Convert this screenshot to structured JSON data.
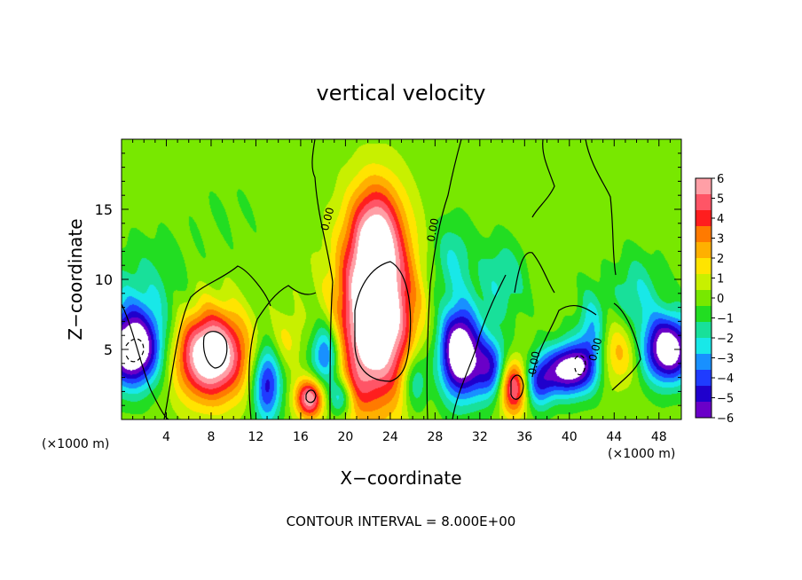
{
  "chart_data": {
    "type": "heatmap",
    "title": "vertical velocity",
    "xlabel": "X−coordinate",
    "ylabel": "Z−coordinate",
    "x_unit_left": "(×1000 m)",
    "x_unit_right": "(×1000 m)",
    "footer": "CONTOUR INTERVAL = 8.000E+00",
    "xlim": [
      0,
      50
    ],
    "ylim": [
      0,
      20
    ],
    "x_ticks": [
      "4",
      "8",
      "12",
      "16",
      "20",
      "24",
      "28",
      "32",
      "36",
      "40",
      "44",
      "48"
    ],
    "y_ticks": [
      "5",
      "10",
      "15"
    ],
    "colorbar": {
      "range": [
        -6,
        6
      ],
      "labels": [
        "6",
        "5",
        "4",
        "3",
        "2",
        "1",
        "0",
        "−1",
        "−2",
        "−3",
        "−4",
        "−5",
        "−6"
      ],
      "colors": [
        "#ff9fa6",
        "#ff5566",
        "#ff1e1e",
        "#ff7a00",
        "#ffb000",
        "#ffe400",
        "#c8f000",
        "#78e800",
        "#22dd22",
        "#18e09a",
        "#18e8e8",
        "#1890ff",
        "#1f3cff",
        "#1f00cc",
        "#6a00c8"
      ]
    },
    "contour_labels": [
      "0.00",
      "0.00",
      "0.00",
      "0.00"
    ],
    "features": [
      {
        "kind": "updraft",
        "x": 8.0,
        "z": 4.6,
        "sx": 2.2,
        "sz": 2.2,
        "w": 8.0
      },
      {
        "kind": "updraft",
        "x": 22.7,
        "z": 7.5,
        "sx": 2.3,
        "sz": 4.4,
        "w": 9.0
      },
      {
        "kind": "updraft",
        "x": 22.7,
        "z": 13.5,
        "sx": 1.6,
        "sz": 2.6,
        "w": 4.0
      },
      {
        "kind": "updraft",
        "x": 16.8,
        "z": 1.5,
        "sx": 0.9,
        "sz": 1.0,
        "w": 6.0
      },
      {
        "kind": "updraft",
        "x": 35.0,
        "z": 2.3,
        "sx": 0.9,
        "sz": 1.4,
        "w": 6.0
      },
      {
        "kind": "updraft",
        "x": 20.5,
        "z": 1.8,
        "sx": 0.9,
        "sz": 1.2,
        "w": 3.0
      },
      {
        "kind": "updraft",
        "x": 44.4,
        "z": 4.8,
        "sx": 1.3,
        "sz": 1.6,
        "w": 2.5
      },
      {
        "kind": "updraft",
        "x": 14.6,
        "z": 5.6,
        "sx": 1.0,
        "sz": 1.4,
        "w": 1.5
      },
      {
        "kind": "downdraft",
        "x": 1.0,
        "z": 5.0,
        "sx": 1.8,
        "sz": 1.9,
        "w": -8.0
      },
      {
        "kind": "downdraft",
        "x": 30.2,
        "z": 4.8,
        "sx": 1.3,
        "sz": 2.3,
        "w": -8.0
      },
      {
        "kind": "downdraft",
        "x": 40.0,
        "z": 3.6,
        "sx": 1.5,
        "sz": 1.3,
        "w": -7.0
      },
      {
        "kind": "downdraft",
        "x": 48.8,
        "z": 5.0,
        "sx": 1.6,
        "sz": 1.7,
        "w": -7.5
      },
      {
        "kind": "downdraft",
        "x": 13.0,
        "z": 2.6,
        "sx": 0.9,
        "sz": 2.0,
        "w": -5.0
      },
      {
        "kind": "downdraft",
        "x": 18.2,
        "z": 4.6,
        "sx": 0.9,
        "sz": 1.6,
        "w": -4.5
      },
      {
        "kind": "downdraft",
        "x": 19.8,
        "z": 1.6,
        "sx": 0.9,
        "sz": 1.0,
        "w": -5.0
      },
      {
        "kind": "downdraft",
        "x": 26.2,
        "z": 2.8,
        "sx": 0.8,
        "sz": 1.6,
        "w": -3.0
      },
      {
        "kind": "downdraft",
        "x": 33.0,
        "z": 3.6,
        "sx": 1.1,
        "sz": 1.6,
        "w": -4.5
      },
      {
        "kind": "downdraft",
        "x": 37.2,
        "z": 2.6,
        "sx": 1.0,
        "sz": 1.3,
        "w": -4.0
      },
      {
        "kind": "downdraft",
        "x": 42.0,
        "z": 6.0,
        "sx": 0.9,
        "sz": 2.2,
        "w": -3.0
      },
      {
        "kind": "downdraft",
        "x": 29.5,
        "z": 11.5,
        "sx": 1.3,
        "sz": 2.0,
        "w": -2.0
      },
      {
        "kind": "downdraft",
        "x": 34.0,
        "z": 10.0,
        "sx": 1.5,
        "sz": 2.0,
        "w": -2.0
      },
      {
        "kind": "downdraft",
        "x": 46.0,
        "z": 9.0,
        "sx": 1.5,
        "sz": 2.0,
        "w": -2.0
      },
      {
        "kind": "downdraft",
        "x": 2.0,
        "z": 9.0,
        "sx": 2.5,
        "sz": 2.5,
        "w": -1.6
      },
      {
        "kind": "downdraft",
        "x": 9.5,
        "z": 15.0,
        "sx": 4.0,
        "sz": 3.0,
        "w": -0.4
      }
    ]
  }
}
